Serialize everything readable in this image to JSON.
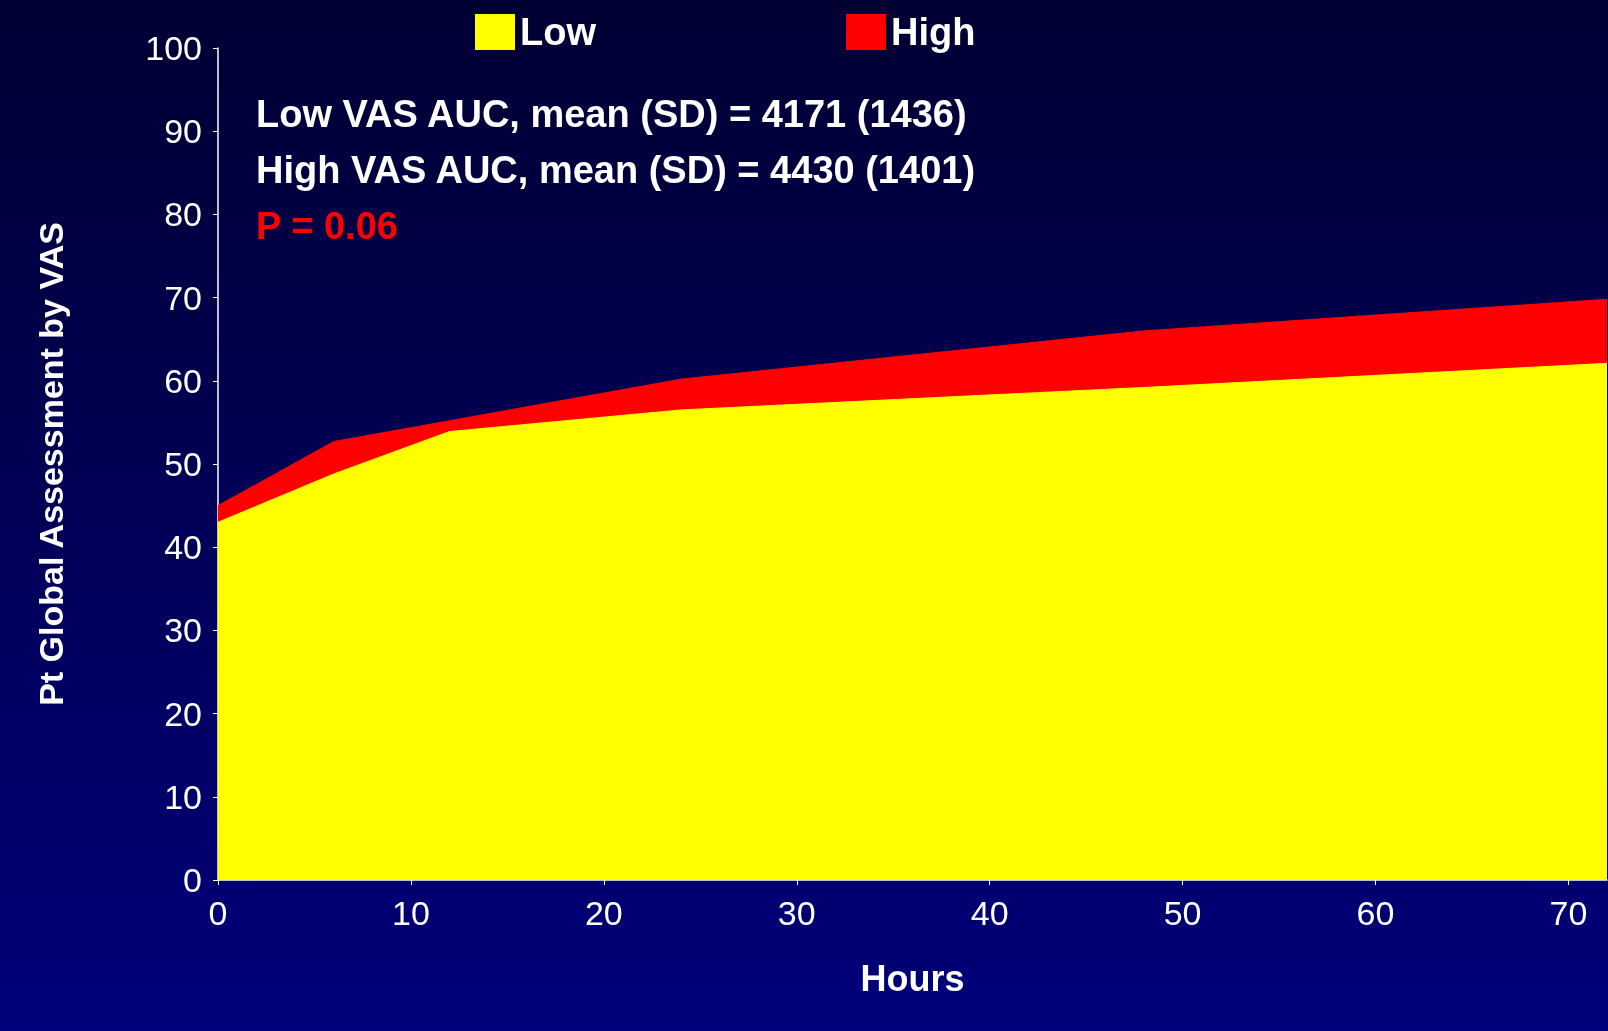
{
  "chart_data": {
    "type": "area",
    "xlabel": "Hours",
    "ylabel": "Pt Global Assessment by VAS",
    "x": [
      0,
      6,
      12,
      24,
      48,
      72
    ],
    "series": [
      {
        "name": "Low",
        "color": "#ffff00",
        "values": [
          43,
          48.8,
          53.9,
          56.5,
          59.2,
          62.1
        ]
      },
      {
        "name": "High",
        "color": "#ff0000",
        "values": [
          45,
          52.7,
          55.2,
          60.2,
          66,
          69.8
        ]
      }
    ],
    "xlim": [
      0,
      72
    ],
    "xticks": [
      0,
      10,
      20,
      30,
      40,
      50,
      60,
      70
    ],
    "ylim": [
      0,
      100
    ],
    "yticks": [
      0,
      10,
      20,
      30,
      40,
      50,
      60,
      70,
      80,
      90,
      100
    ],
    "annotations": [
      "Low VAS AUC, mean (SD) = 4171 (1436)",
      "High VAS AUC, mean (SD) = 4430 (1401)",
      "P = 0.06"
    ],
    "grid": false,
    "legend": "top",
    "marker": "none",
    "line_style": "solid"
  }
}
